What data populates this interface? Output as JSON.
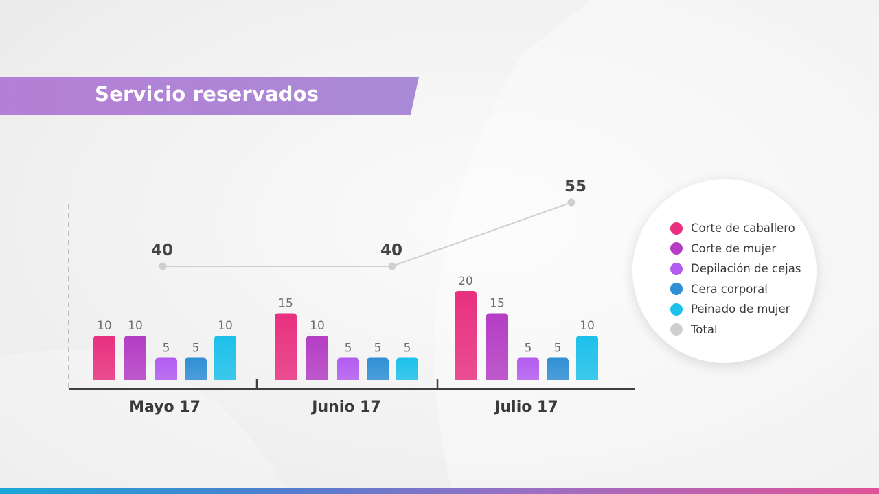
{
  "title": "Servicio reservados",
  "chart_data": {
    "type": "bar",
    "categories": [
      "Mayo 17",
      "Junio 17",
      "Julio 17"
    ],
    "series": [
      {
        "name": "Corte de caballero",
        "values": [
          10,
          15,
          20
        ],
        "color": "#e8307f"
      },
      {
        "name": "Corte de mujer",
        "values": [
          10,
          10,
          15
        ],
        "color": "#b43dc4"
      },
      {
        "name": "Depilación de cejas",
        "values": [
          5,
          5,
          5
        ],
        "color": "#b35bf0"
      },
      {
        "name": "Cera corporal",
        "values": [
          5,
          5,
          5
        ],
        "color": "#2f8fd4"
      },
      {
        "name": "Peinado de mujer",
        "values": [
          10,
          5,
          10
        ],
        "color": "#1cc0ea"
      }
    ],
    "total": {
      "name": "Total",
      "values": [
        40,
        40,
        55
      ],
      "color": "#cfcfcf"
    },
    "ylim": [
      0,
      20
    ]
  },
  "legend": [
    {
      "label": "Corte de caballero",
      "color": "#e8307f"
    },
    {
      "label": "Corte de mujer",
      "color": "#b43dc4"
    },
    {
      "label": "Depilación de cejas",
      "color": "#b35bf0"
    },
    {
      "label": "Cera corporal",
      "color": "#2f8fd4"
    },
    {
      "label": "Peinado de mujer",
      "color": "#1cc0ea"
    },
    {
      "label": "Total",
      "color": "#cfcfcf"
    }
  ]
}
